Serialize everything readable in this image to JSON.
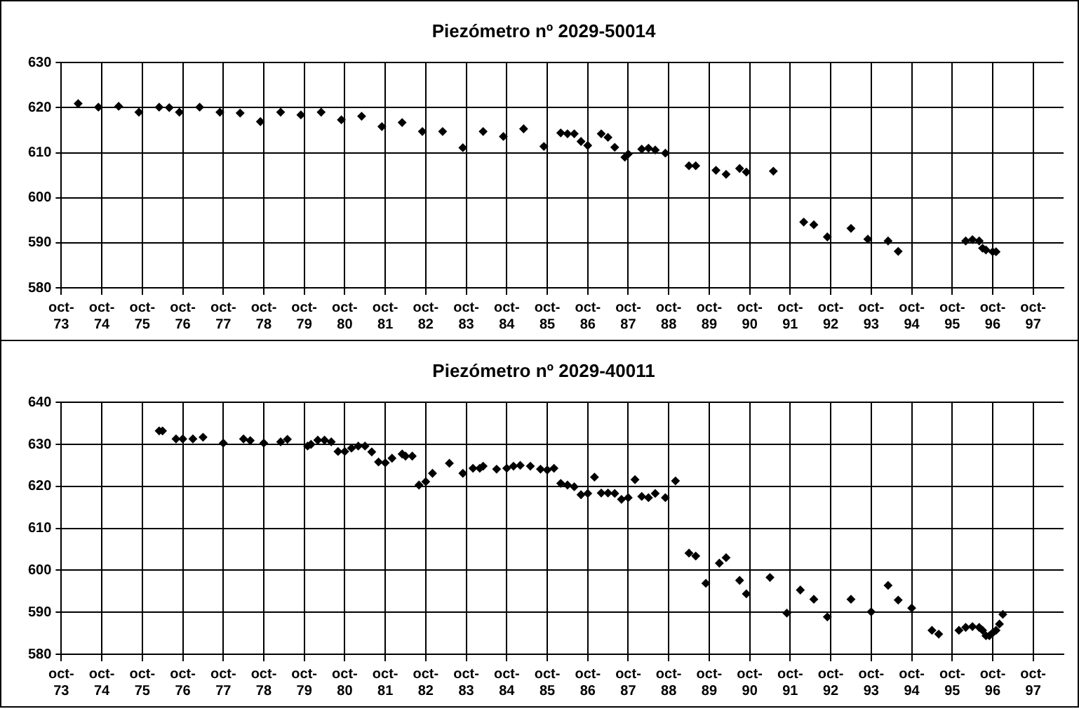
{
  "chart_data": [
    {
      "type": "scatter",
      "title": "Piezómetro nº 2029-50014",
      "color": "#000000",
      "marker": "diamond",
      "grid": true,
      "x": [
        "1974-03",
        "1974-09",
        "1975-03",
        "1975-09",
        "1976-03",
        "1976-06",
        "1976-09",
        "1977-03",
        "1977-09",
        "1978-03",
        "1978-09",
        "1979-03",
        "1979-09",
        "1980-03",
        "1980-09",
        "1981-03",
        "1981-09",
        "1982-03",
        "1982-09",
        "1983-03",
        "1983-09",
        "1984-03",
        "1984-09",
        "1985-03",
        "1985-09",
        "1986-02",
        "1986-04",
        "1986-06",
        "1986-08",
        "1986-10",
        "1987-02",
        "1987-04",
        "1987-06",
        "1987-09",
        "1987-10",
        "1988-02",
        "1988-04",
        "1988-06",
        "1988-09",
        "1989-04",
        "1989-06",
        "1989-12",
        "1990-03",
        "1990-07",
        "1990-09",
        "1991-05",
        "1992-02",
        "1992-05",
        "1992-09",
        "1993-04",
        "1993-09",
        "1994-03",
        "1994-06",
        "1996-02",
        "1996-04",
        "1996-06",
        "1996-07",
        "1996-08",
        "1996-10",
        "1996-11"
      ],
      "values": [
        620.9,
        620.1,
        620.3,
        619.0,
        620.1,
        620.0,
        619.0,
        620.1,
        619.0,
        618.8,
        616.9,
        619.0,
        618.4,
        619.0,
        617.3,
        618.1,
        615.8,
        616.7,
        614.7,
        614.7,
        611.1,
        614.7,
        613.6,
        615.3,
        611.4,
        614.4,
        614.2,
        614.2,
        612.5,
        611.6,
        614.2,
        613.4,
        611.2,
        609.0,
        609.7,
        610.8,
        611.0,
        610.6,
        609.9,
        607.1,
        607.1,
        606.1,
        605.2,
        606.5,
        605.7,
        605.9,
        594.6,
        594.0,
        591.3,
        593.2,
        590.8,
        590.4,
        588.1,
        590.4,
        590.7,
        590.4,
        588.8,
        588.4,
        588.0,
        588.0
      ],
      "xlim": [
        "1973-10",
        "1998-07"
      ],
      "xticks": [
        {
          "value": "1973-10",
          "label": "oct-73"
        },
        {
          "value": "1974-10",
          "label": "oct-74"
        },
        {
          "value": "1975-10",
          "label": "oct-75"
        },
        {
          "value": "1976-10",
          "label": "oct-76"
        },
        {
          "value": "1977-10",
          "label": "oct-77"
        },
        {
          "value": "1978-10",
          "label": "oct-78"
        },
        {
          "value": "1979-10",
          "label": "oct-79"
        },
        {
          "value": "1980-10",
          "label": "oct-80"
        },
        {
          "value": "1981-10",
          "label": "oct-81"
        },
        {
          "value": "1982-10",
          "label": "oct-82"
        },
        {
          "value": "1983-10",
          "label": "oct-83"
        },
        {
          "value": "1984-10",
          "label": "oct-84"
        },
        {
          "value": "1985-10",
          "label": "oct-85"
        },
        {
          "value": "1986-10",
          "label": "oct-86"
        },
        {
          "value": "1987-10",
          "label": "oct-87"
        },
        {
          "value": "1988-10",
          "label": "oct-88"
        },
        {
          "value": "1989-10",
          "label": "oct-89"
        },
        {
          "value": "1990-10",
          "label": "oct-90"
        },
        {
          "value": "1991-10",
          "label": "oct-91"
        },
        {
          "value": "1992-10",
          "label": "oct-92"
        },
        {
          "value": "1993-10",
          "label": "oct-93"
        },
        {
          "value": "1994-10",
          "label": "oct-94"
        },
        {
          "value": "1995-10",
          "label": "oct-95"
        },
        {
          "value": "1996-10",
          "label": "oct-96"
        },
        {
          "value": "1997-10",
          "label": "oct-97"
        }
      ],
      "ylim": [
        580,
        630
      ],
      "yticks": [
        580,
        590,
        600,
        610,
        620,
        630
      ]
    },
    {
      "type": "scatter",
      "title": "Piezómetro nº 2029-40011",
      "color": "#000000",
      "marker": "diamond",
      "grid": true,
      "x": [
        "1976-03",
        "1976-04",
        "1976-08",
        "1976-10",
        "1977-01",
        "1977-04",
        "1977-10",
        "1978-04",
        "1978-06",
        "1978-10",
        "1979-03",
        "1979-05",
        "1979-11",
        "1979-12",
        "1980-02",
        "1980-04",
        "1980-06",
        "1980-08",
        "1980-10",
        "1980-12",
        "1981-02",
        "1981-04",
        "1981-06",
        "1981-08",
        "1981-10",
        "1981-12",
        "1982-03",
        "1982-04",
        "1982-06",
        "1982-08",
        "1982-10",
        "1982-12",
        "1983-05",
        "1983-09",
        "1983-12",
        "1984-02",
        "1984-03",
        "1984-07",
        "1984-10",
        "1984-12",
        "1985-02",
        "1985-05",
        "1985-08",
        "1985-10",
        "1985-12",
        "1986-02",
        "1986-04",
        "1986-06",
        "1986-08",
        "1986-10",
        "1986-12",
        "1987-02",
        "1987-04",
        "1987-06",
        "1987-08",
        "1987-10",
        "1987-12",
        "1988-02",
        "1988-04",
        "1988-06",
        "1988-09",
        "1988-12",
        "1989-04",
        "1989-06",
        "1989-09",
        "1990-01",
        "1990-03",
        "1990-07",
        "1990-09",
        "1991-04",
        "1991-09",
        "1992-01",
        "1992-05",
        "1992-09",
        "1993-04",
        "1993-10",
        "1994-03",
        "1994-06",
        "1994-10",
        "1995-04",
        "1995-06",
        "1995-12",
        "1996-02",
        "1996-04",
        "1996-06",
        "1996-07",
        "1996-08",
        "1996-09",
        "1996-10",
        "1996-11",
        "1996-12",
        "1997-01"
      ],
      "values": [
        633.2,
        633.2,
        631.3,
        631.3,
        631.3,
        631.7,
        630.3,
        631.3,
        630.9,
        630.3,
        630.6,
        631.2,
        629.6,
        630.0,
        631.0,
        631.0,
        630.6,
        628.3,
        628.3,
        629.1,
        629.6,
        629.6,
        628.2,
        625.8,
        625.6,
        626.7,
        627.7,
        627.2,
        627.2,
        620.3,
        621.1,
        623.1,
        625.5,
        623.1,
        624.3,
        624.3,
        624.8,
        624.1,
        624.3,
        624.8,
        625.0,
        624.8,
        624.1,
        623.9,
        624.3,
        620.7,
        620.3,
        619.9,
        618.0,
        618.3,
        622.2,
        618.4,
        618.4,
        618.3,
        616.9,
        617.3,
        621.6,
        617.6,
        617.3,
        618.3,
        617.3,
        621.3,
        604.1,
        603.4,
        596.9,
        601.7,
        603.0,
        597.6,
        594.4,
        598.3,
        589.8,
        595.3,
        593.1,
        588.9,
        593.1,
        590.1,
        596.4,
        592.9,
        591.0,
        585.7,
        584.8,
        585.7,
        586.4,
        586.6,
        586.4,
        585.7,
        584.4,
        584.4,
        585.1,
        585.7,
        587.2,
        589.5
      ],
      "xlim": [
        "1973-10",
        "1998-07"
      ],
      "xticks": [
        {
          "value": "1973-10",
          "label": "oct-73"
        },
        {
          "value": "1974-10",
          "label": "oct-74"
        },
        {
          "value": "1975-10",
          "label": "oct-75"
        },
        {
          "value": "1976-10",
          "label": "oct-76"
        },
        {
          "value": "1977-10",
          "label": "oct-77"
        },
        {
          "value": "1978-10",
          "label": "oct-78"
        },
        {
          "value": "1979-10",
          "label": "oct-79"
        },
        {
          "value": "1980-10",
          "label": "oct-80"
        },
        {
          "value": "1981-10",
          "label": "oct-81"
        },
        {
          "value": "1982-10",
          "label": "oct-82"
        },
        {
          "value": "1983-10",
          "label": "oct-83"
        },
        {
          "value": "1984-10",
          "label": "oct-84"
        },
        {
          "value": "1985-10",
          "label": "oct-85"
        },
        {
          "value": "1986-10",
          "label": "oct-86"
        },
        {
          "value": "1987-10",
          "label": "oct-87"
        },
        {
          "value": "1988-10",
          "label": "oct-88"
        },
        {
          "value": "1989-10",
          "label": "oct-89"
        },
        {
          "value": "1990-10",
          "label": "oct-90"
        },
        {
          "value": "1991-10",
          "label": "oct-91"
        },
        {
          "value": "1992-10",
          "label": "oct-92"
        },
        {
          "value": "1993-10",
          "label": "oct-93"
        },
        {
          "value": "1994-10",
          "label": "oct-94"
        },
        {
          "value": "1995-10",
          "label": "oct-95"
        },
        {
          "value": "1996-10",
          "label": "oct-96"
        },
        {
          "value": "1997-10",
          "label": "oct-97"
        }
      ],
      "ylim": [
        580,
        640
      ],
      "yticks": [
        580,
        590,
        600,
        610,
        620,
        630,
        640
      ]
    }
  ]
}
